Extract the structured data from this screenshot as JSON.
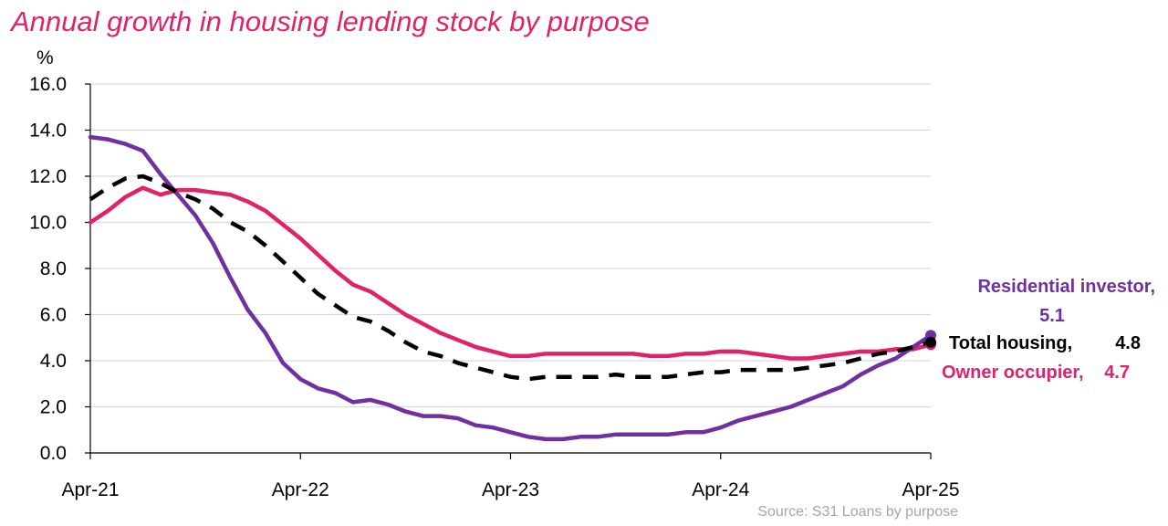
{
  "chart_data": {
    "type": "line",
    "title": "Annual growth in housing lending stock by purpose",
    "ylabel": "%",
    "ylim": [
      0,
      16
    ],
    "yticks": [
      "0.0",
      "2.0",
      "4.0",
      "6.0",
      "8.0",
      "10.0",
      "12.0",
      "14.0",
      "16.0"
    ],
    "x_labels": [
      "Apr-21",
      "Apr-22",
      "Apr-23",
      "Apr-24",
      "Apr-25"
    ],
    "x": [
      "2021-04",
      "2021-05",
      "2021-06",
      "2021-07",
      "2021-08",
      "2021-09",
      "2021-10",
      "2021-11",
      "2021-12",
      "2022-01",
      "2022-02",
      "2022-03",
      "2022-04",
      "2022-05",
      "2022-06",
      "2022-07",
      "2022-08",
      "2022-09",
      "2022-10",
      "2022-11",
      "2022-12",
      "2023-01",
      "2023-02",
      "2023-03",
      "2023-04",
      "2023-05",
      "2023-06",
      "2023-07",
      "2023-08",
      "2023-09",
      "2023-10",
      "2023-11",
      "2023-12",
      "2024-01",
      "2024-02",
      "2024-03",
      "2024-04",
      "2024-05",
      "2024-06",
      "2024-07",
      "2024-08",
      "2024-09",
      "2024-10",
      "2024-11",
      "2024-12",
      "2025-01",
      "2025-02",
      "2025-03",
      "2025-04"
    ],
    "grid": true,
    "series": [
      {
        "name": "Residential investor",
        "color": "#7030a0",
        "style": "solid",
        "values": [
          13.7,
          13.6,
          13.4,
          13.1,
          12.1,
          11.2,
          10.3,
          9.1,
          7.6,
          6.2,
          5.2,
          3.9,
          3.2,
          2.8,
          2.6,
          2.2,
          2.3,
          2.1,
          1.8,
          1.6,
          1.6,
          1.5,
          1.2,
          1.1,
          0.9,
          0.7,
          0.6,
          0.6,
          0.7,
          0.7,
          0.8,
          0.8,
          0.8,
          0.8,
          0.9,
          0.9,
          1.1,
          1.4,
          1.6,
          1.8,
          2.0,
          2.3,
          2.6,
          2.9,
          3.4,
          3.8,
          4.1,
          4.6,
          5.1
        ],
        "end_label": "Residential investor,",
        "end_value": "5.1"
      },
      {
        "name": "Total housing",
        "color": "#000000",
        "style": "dashed",
        "values": [
          11.0,
          11.5,
          11.9,
          12.0,
          11.7,
          11.3,
          11.0,
          10.6,
          10.0,
          9.6,
          9.0,
          8.3,
          7.6,
          6.9,
          6.4,
          5.9,
          5.7,
          5.3,
          4.8,
          4.4,
          4.2,
          3.9,
          3.7,
          3.5,
          3.3,
          3.2,
          3.3,
          3.3,
          3.3,
          3.3,
          3.4,
          3.3,
          3.3,
          3.3,
          3.4,
          3.5,
          3.5,
          3.6,
          3.6,
          3.6,
          3.6,
          3.7,
          3.8,
          3.9,
          4.1,
          4.3,
          4.4,
          4.6,
          4.8
        ],
        "end_label": "Total housing,",
        "end_value": "4.8"
      },
      {
        "name": "Owner occupier",
        "color": "#e0226a",
        "style": "solid",
        "values": [
          10.0,
          10.5,
          11.1,
          11.5,
          11.2,
          11.4,
          11.4,
          11.3,
          11.2,
          10.9,
          10.5,
          9.9,
          9.3,
          8.6,
          7.9,
          7.3,
          7.0,
          6.5,
          6.0,
          5.6,
          5.2,
          4.9,
          4.6,
          4.4,
          4.2,
          4.2,
          4.3,
          4.3,
          4.3,
          4.3,
          4.3,
          4.3,
          4.2,
          4.2,
          4.3,
          4.3,
          4.4,
          4.4,
          4.3,
          4.2,
          4.1,
          4.1,
          4.2,
          4.3,
          4.4,
          4.4,
          4.5,
          4.5,
          4.7
        ],
        "end_label": "Owner occupier,",
        "end_value": "4.7"
      }
    ],
    "source": "Source: S31 Loans by purpose"
  }
}
